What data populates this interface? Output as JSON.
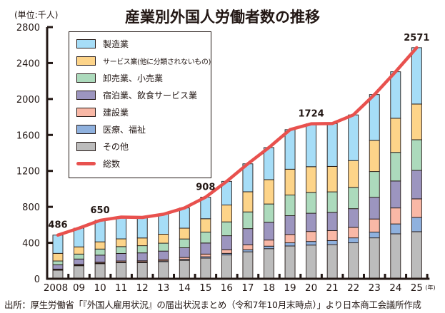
{
  "title": "産業別外国人労働者数の推移",
  "unit_label": "(単位:千人)",
  "source": "出所：厚生労働省「『外国人雇用状況』の届出状況まとめ（令和7年10月末時点）」より日本商工会議所作成",
  "chart_data": {
    "type": "bar",
    "stacked": true,
    "title": "産業別外国人労働者数の推移",
    "xlabel": "(年)",
    "ylabel": "(単位:千人)",
    "ylim": [
      0,
      2800
    ],
    "yticks": [
      0,
      400,
      800,
      1200,
      1600,
      2000,
      2400,
      2800
    ],
    "ytick_labels": [
      "0",
      "400",
      "800",
      "1200",
      "1600",
      "2000",
      "2400",
      "2800"
    ],
    "grid": false,
    "legend_position": "top-left",
    "categories": [
      "2008",
      "09",
      "10",
      "11",
      "12",
      "13",
      "14",
      "15",
      "16",
      "17",
      "18",
      "19",
      "20",
      "21",
      "22",
      "23",
      "24",
      "25"
    ],
    "x_suffix": "(年)",
    "series": [
      {
        "name": "その他",
        "color": "#bcbcbc",
        "values": [
          95,
          145,
          168,
          178,
          180,
          190,
          205,
          230,
          265,
          300,
          335,
          365,
          375,
          380,
          400,
          455,
          500,
          524
        ]
      },
      {
        "name": "医療、福祉",
        "color": "#8fb1de",
        "values": [
          5,
          6,
          7,
          8,
          8,
          10,
          12,
          15,
          18,
          23,
          28,
          35,
          40,
          45,
          55,
          65,
          110,
          159
        ]
      },
      {
        "name": "建設業",
        "color": "#f9b8a6",
        "values": [
          8,
          9,
          10,
          12,
          12,
          14,
          20,
          30,
          40,
          55,
          68,
          93,
          111,
          111,
          117,
          145,
          178,
          206
        ]
      },
      {
        "name": "宿泊業、飲食サービス業",
        "color": "#9c95bf",
        "values": [
          48,
          60,
          78,
          84,
          88,
          94,
          108,
          123,
          156,
          180,
          198,
          209,
          203,
          203,
          208,
          242,
          300,
          317
        ]
      },
      {
        "name": "卸売業、小売業",
        "color": "#acdabc",
        "values": [
          42,
          55,
          68,
          76,
          80,
          88,
          98,
          122,
          154,
          186,
          203,
          230,
          232,
          228,
          237,
          286,
          318,
          341
        ]
      },
      {
        "name": "サービス業(他に分類されないもの)",
        "color": "#fdd489",
        "values": [
          85,
          80,
          80,
          86,
          86,
          100,
          120,
          148,
          188,
          224,
          271,
          287,
          286,
          283,
          298,
          347,
          380,
          397
        ]
      },
      {
        "name": "製造業",
        "color": "#a6ddf7",
        "values": [
          203,
          208,
          239,
          242,
          228,
          222,
          225,
          240,
          263,
          311,
          357,
          440,
          477,
          477,
          508,
          509,
          517,
          627
        ]
      }
    ],
    "total_series": {
      "name": "総数",
      "color": "#e8514e",
      "values": [
        486,
        563,
        650,
        686,
        682,
        718,
        788,
        908,
        1084,
        1279,
        1460,
        1659,
        1724,
        1727,
        1823,
        2049,
        2303,
        2571
      ]
    },
    "annotations": [
      {
        "category": "2008",
        "label": "486"
      },
      {
        "category": "10",
        "label": "650"
      },
      {
        "category": "15",
        "label": "908"
      },
      {
        "category": "20",
        "label": "1724"
      },
      {
        "category": "25",
        "label": "2571"
      }
    ]
  },
  "legend": [
    {
      "label": "製造業",
      "color": "#a6ddf7",
      "kind": "box"
    },
    {
      "label": "サービス業(他に分類されないもの)",
      "color": "#fdd489",
      "kind": "box"
    },
    {
      "label": "卸売業、小売業",
      "color": "#acdabc",
      "kind": "box"
    },
    {
      "label": "宿泊業、飲食サービス業",
      "color": "#9c95bf",
      "kind": "box"
    },
    {
      "label": "建設業",
      "color": "#f9b8a6",
      "kind": "box"
    },
    {
      "label": "医療、福祉",
      "color": "#8fb1de",
      "kind": "box"
    },
    {
      "label": "その他",
      "color": "#bcbcbc",
      "kind": "box"
    },
    {
      "label": "総数",
      "color": "#e8514e",
      "kind": "line"
    }
  ]
}
